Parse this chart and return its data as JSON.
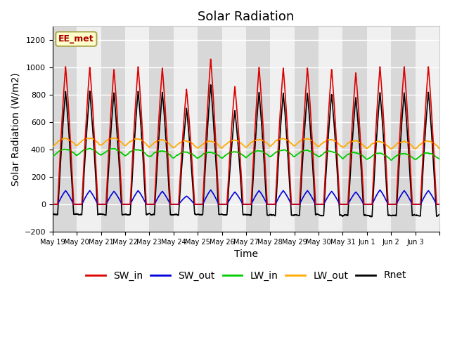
{
  "title": "Solar Radiation",
  "ylabel": "Solar Radiation (W/m2)",
  "xlabel": "Time",
  "ylim": [
    -200,
    1300
  ],
  "yticks": [
    -200,
    0,
    200,
    400,
    600,
    800,
    1000,
    1200
  ],
  "n_days": 16,
  "x_tick_labels": [
    "May 19",
    "May 20",
    "May 21",
    "May 22",
    "May 23",
    "May 24",
    "May 25",
    "May 26",
    "May 27",
    "May 28",
    "May 29",
    "May 30",
    "May 31",
    "Jun 1",
    "Jun 2",
    "Jun 3"
  ],
  "SW_in_peak": [
    1005,
    1000,
    985,
    1005,
    995,
    840,
    1060,
    860,
    1000,
    995,
    995,
    985,
    960,
    1005,
    1005,
    1005
  ],
  "SW_out_peak": [
    100,
    100,
    95,
    100,
    95,
    60,
    105,
    90,
    100,
    100,
    100,
    95,
    90,
    105,
    100,
    100
  ],
  "LW_in_base": 350,
  "LW_in_amp": 60,
  "LW_out_base": 420,
  "LW_out_amp": 70,
  "night_Rnet": -60,
  "color_SW_in": "#dd0000",
  "color_SW_out": "#0000dd",
  "color_LW_in": "#00cc00",
  "color_LW_out": "#ffaa00",
  "color_Rnet": "#000000",
  "color_bg_light": "#f0f0f0",
  "color_bg_dark": "#d8d8d8",
  "color_grid": "#ffffff",
  "annotation_text": "EE_met",
  "annotation_color": "#aa0000",
  "annotation_bg": "#ffffcc",
  "annotation_border": "#aaa855",
  "title_fontsize": 13,
  "label_fontsize": 10,
  "tick_fontsize": 8,
  "legend_fontsize": 10,
  "linewidth": 1.2
}
